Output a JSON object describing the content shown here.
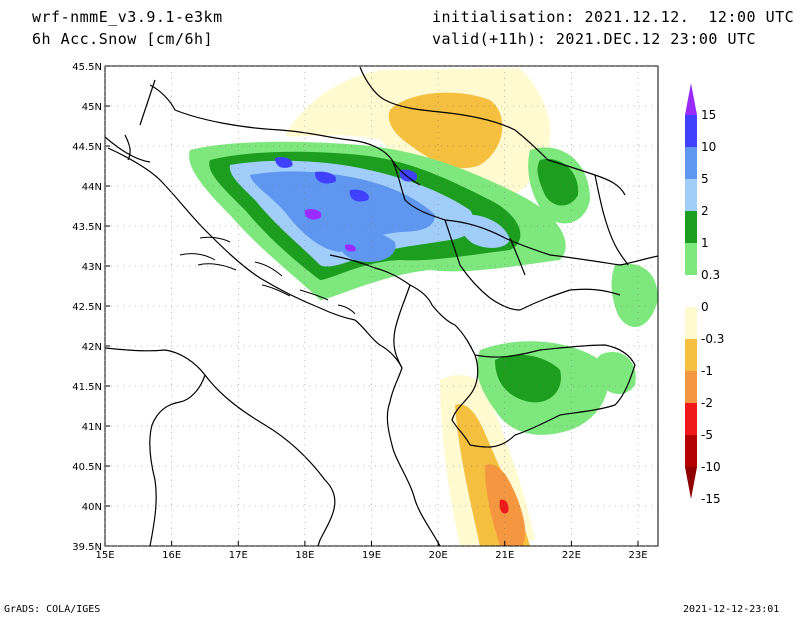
{
  "header": {
    "model": "wrf-nmmE_v3.9.1-e3km",
    "variable": "6h Acc.Snow [cm/6h]",
    "init": "initialisation: 2021.12.12.  12:00 UTC",
    "valid": "valid(+11h): 2021.DEC.12 23:00 UTC"
  },
  "footer": {
    "left": "GrADS: COLA/IGES",
    "right": "2021-12-12-23:01"
  },
  "map": {
    "lon_range": [
      15,
      23.3
    ],
    "lat_range": [
      39.5,
      45.5
    ],
    "lon_ticks": [
      "15E",
      "16E",
      "17E",
      "18E",
      "19E",
      "20E",
      "21E",
      "22E",
      "23E"
    ],
    "lat_ticks": [
      "39.5N",
      "40N",
      "40.5N",
      "41N",
      "41.5N",
      "42N",
      "42.5N",
      "43N",
      "43.5N",
      "44N",
      "44.5N",
      "45N",
      "45.5N"
    ]
  },
  "colorbar": {
    "labels": [
      "15",
      "10",
      "5",
      "2",
      "1",
      "0.3",
      "0",
      "-0.3",
      "-1",
      "-2",
      "-5",
      "-10",
      "-15"
    ],
    "colors": [
      "#9a2bff",
      "#4040ff",
      "#5f97f0",
      "#a0cdfa",
      "#1e9e1e",
      "#7ee87e",
      "#ffffff",
      "#fffad0",
      "#f5c040",
      "#f59640",
      "#f01818",
      "#b40000",
      "#900000"
    ]
  },
  "colors": {
    "snow_heavy": "#4040ff",
    "snow_mid": "#5f97f0",
    "snow_light": "#a0cdfa",
    "green_dark": "#1e9e1e",
    "green_light": "#7ee87e",
    "melt_light": "#fffad0",
    "melt_mid": "#f5c040",
    "melt_orange": "#f59640",
    "melt_red": "#f01818"
  }
}
